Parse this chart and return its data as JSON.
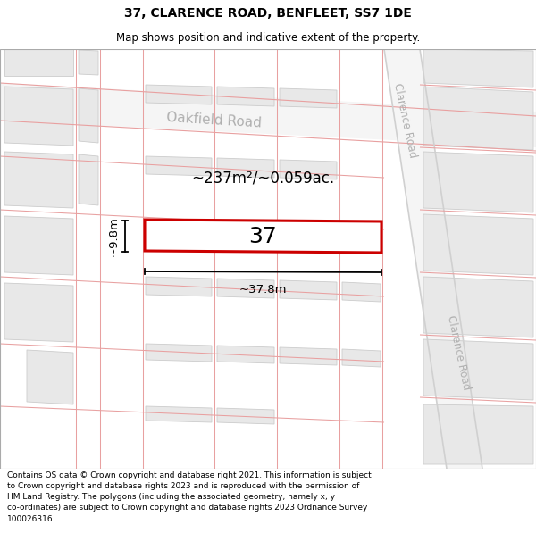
{
  "title": "37, CLARENCE ROAD, BENFLEET, SS7 1DE",
  "subtitle": "Map shows position and indicative extent of the property.",
  "footer": "Contains OS data © Crown copyright and database right 2021. This information is subject to Crown copyright and database rights 2023 and is reproduced with the permission of HM Land Registry. The polygons (including the associated geometry, namely x, y co-ordinates) are subject to Crown copyright and database rights 2023 Ordnance Survey 100026316.",
  "bg_color": "#ffffff",
  "map_bg": "#ffffff",
  "building_fill": "#e8e8e8",
  "building_edge": "#cccccc",
  "plot_line_color": "#e8a0a0",
  "road_fill": "#f5f5f5",
  "highlight_color": "#cc0000",
  "measure_color": "#000000",
  "road_label_color": "#b0b0b0",
  "label_37": "37",
  "area_label": "~237m²/~0.059ac.",
  "width_label": "~37.8m",
  "height_label": "~9.8m",
  "road_label_oakfield": "Oakfield Road",
  "road_label_clarence1": "Clarence Road",
  "road_label_clarence2": "Clarence Road",
  "title_fontsize": 10,
  "subtitle_fontsize": 8.5,
  "footer_fontsize": 6.5
}
